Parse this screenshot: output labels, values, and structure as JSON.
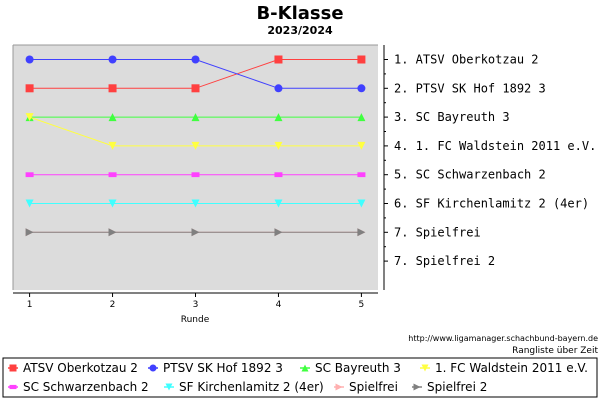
{
  "chart_data": {
    "type": "line",
    "title": "B-Klasse",
    "subtitle": "2023/2024",
    "xlabel": "Runde",
    "ylabel": "",
    "x": [
      1,
      2,
      3,
      4,
      5
    ],
    "ylim": [
      1,
      8
    ],
    "y_inverted": true,
    "grid": false,
    "background": "#dcdcdc",
    "rank_labels": [
      "1. ATSV Oberkotzau 2",
      "2. PTSV SK Hof 1892 3",
      "3. SC Bayreuth 3",
      "4. 1. FC Waldstein 2011 e.V.",
      "5. SC Schwarzenbach 2",
      "6. SF Kirchenlamitz 2 (4er)",
      "7. Spielfrei",
      "7. Spielfrei 2"
    ],
    "series": [
      {
        "name": "ATSV Oberkotzau 2",
        "color": "#ff4040",
        "marker": "square",
        "values": [
          2,
          2,
          2,
          1,
          1
        ]
      },
      {
        "name": "PTSV SK Hof 1892 3",
        "color": "#4040ff",
        "marker": "circle",
        "values": [
          1,
          1,
          1,
          2,
          2
        ]
      },
      {
        "name": "SC Bayreuth 3",
        "color": "#40ff40",
        "marker": "triangle-up",
        "values": [
          3,
          3,
          3,
          3,
          3
        ]
      },
      {
        "name": "1. FC Waldstein 2011 e.V.",
        "color": "#ffff40",
        "marker": "triangle-down",
        "values": [
          3,
          4,
          4,
          4,
          4
        ]
      },
      {
        "name": "SC Schwarzenbach 2",
        "color": "#ff40ff",
        "marker": "square-small",
        "values": [
          5,
          5,
          5,
          5,
          5
        ]
      },
      {
        "name": "SF Kirchenlamitz 2 (4er)",
        "color": "#40ffff",
        "marker": "triangle-down",
        "values": [
          6,
          6,
          6,
          6,
          6
        ]
      },
      {
        "name": "Spielfrei",
        "color": "#ffb0b0",
        "marker": "triangle-right",
        "values": [
          7,
          7,
          7,
          7,
          7
        ]
      },
      {
        "name": "Spielfrei 2",
        "color": "#808080",
        "marker": "triangle-right",
        "values": [
          7,
          7,
          7,
          7,
          7
        ]
      }
    ],
    "legend_position": "bottom",
    "source_url": "http://www.ligamanager.schachbund-bayern.de",
    "note": "Rangliste über Zeit"
  }
}
